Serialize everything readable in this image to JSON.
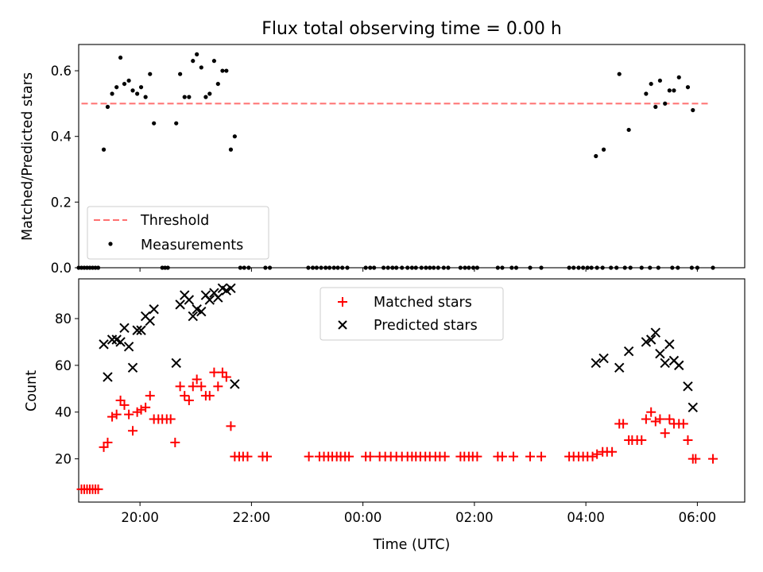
{
  "title": "Flux total observing time = 0.00 h",
  "chart_data": [
    {
      "type": "scatter",
      "ylabel": "Matched/Predicted stars",
      "xlabel": "",
      "x_range_hours": [
        -5.1,
        6.85
      ],
      "ylim": [
        0,
        0.68
      ],
      "yticks": [
        0.0,
        0.2,
        0.4,
        0.6
      ],
      "ytick_labels": [
        "0.0",
        "0.2",
        "0.4",
        "0.6"
      ],
      "threshold": {
        "name": "Threshold",
        "value": 0.5,
        "x_start": -5.05,
        "x_end": 6.2,
        "color": "#ff7070"
      },
      "legend": {
        "placement": "lower-left",
        "entries": [
          "Threshold",
          "Measurements"
        ]
      },
      "series": [
        {
          "name": "Measurements",
          "color": "#000000",
          "marker": "dot",
          "points": [
            [
              -5.1,
              0
            ],
            [
              -5.05,
              0
            ],
            [
              -5.0,
              0
            ],
            [
              -4.95,
              0
            ],
            [
              -4.9,
              0
            ],
            [
              -4.85,
              0
            ],
            [
              -4.8,
              0
            ],
            [
              -4.75,
              0
            ],
            [
              -4.65,
              0.36
            ],
            [
              -4.58,
              0.49
            ],
            [
              -4.5,
              0.53
            ],
            [
              -4.42,
              0.55
            ],
            [
              -4.35,
              0.64
            ],
            [
              -4.28,
              0.56
            ],
            [
              -4.2,
              0.57
            ],
            [
              -4.13,
              0.54
            ],
            [
              -4.05,
              0.53
            ],
            [
              -3.98,
              0.55
            ],
            [
              -3.9,
              0.52
            ],
            [
              -3.82,
              0.59
            ],
            [
              -3.75,
              0.44
            ],
            [
              -3.6,
              0
            ],
            [
              -3.55,
              0
            ],
            [
              -3.5,
              0
            ],
            [
              -3.35,
              0.44
            ],
            [
              -3.28,
              0.59
            ],
            [
              -3.2,
              0.52
            ],
            [
              -3.12,
              0.52
            ],
            [
              -3.05,
              0.63
            ],
            [
              -2.98,
              0.65
            ],
            [
              -2.9,
              0.61
            ],
            [
              -2.82,
              0.52
            ],
            [
              -2.75,
              0.53
            ],
            [
              -2.67,
              0.63
            ],
            [
              -2.6,
              0.56
            ],
            [
              -2.52,
              0.6
            ],
            [
              -2.45,
              0.6
            ],
            [
              -2.37,
              0.36
            ],
            [
              -2.3,
              0.4
            ],
            [
              -2.2,
              0
            ],
            [
              -2.13,
              0
            ],
            [
              -2.05,
              0
            ],
            [
              -1.75,
              0
            ],
            [
              -1.67,
              0
            ],
            [
              -0.98,
              0
            ],
            [
              -0.9,
              0
            ],
            [
              -0.83,
              0
            ],
            [
              -0.75,
              0
            ],
            [
              -0.67,
              0
            ],
            [
              -0.6,
              0
            ],
            [
              -0.52,
              0
            ],
            [
              -0.45,
              0
            ],
            [
              -0.37,
              0
            ],
            [
              -0.28,
              0
            ],
            [
              0.05,
              0
            ],
            [
              0.13,
              0
            ],
            [
              0.2,
              0
            ],
            [
              0.37,
              0
            ],
            [
              0.45,
              0
            ],
            [
              0.53,
              0
            ],
            [
              0.6,
              0
            ],
            [
              0.7,
              0
            ],
            [
              0.8,
              0
            ],
            [
              0.88,
              0
            ],
            [
              0.95,
              0
            ],
            [
              1.05,
              0
            ],
            [
              1.13,
              0
            ],
            [
              1.2,
              0
            ],
            [
              1.27,
              0
            ],
            [
              1.35,
              0
            ],
            [
              1.45,
              0
            ],
            [
              1.53,
              0
            ],
            [
              1.75,
              0
            ],
            [
              1.83,
              0
            ],
            [
              1.9,
              0
            ],
            [
              1.98,
              0
            ],
            [
              2.05,
              0
            ],
            [
              2.42,
              0
            ],
            [
              2.5,
              0
            ],
            [
              2.67,
              0
            ],
            [
              2.75,
              0
            ],
            [
              3.0,
              0
            ],
            [
              3.2,
              0
            ],
            [
              3.7,
              0
            ],
            [
              3.78,
              0
            ],
            [
              3.87,
              0
            ],
            [
              3.95,
              0
            ],
            [
              4.03,
              0
            ],
            [
              4.1,
              0
            ],
            [
              4.2,
              0
            ],
            [
              4.3,
              0
            ],
            [
              4.45,
              0
            ],
            [
              4.55,
              0
            ],
            [
              4.7,
              0
            ],
            [
              4.8,
              0
            ],
            [
              5.0,
              0
            ],
            [
              5.15,
              0
            ],
            [
              5.3,
              0
            ],
            [
              5.55,
              0
            ],
            [
              5.65,
              0
            ],
            [
              5.9,
              0
            ],
            [
              6.0,
              0
            ],
            [
              6.28,
              0
            ],
            [
              4.18,
              0.34
            ],
            [
              4.32,
              0.36
            ],
            [
              4.6,
              0.59
            ],
            [
              4.77,
              0.42
            ],
            [
              5.08,
              0.53
            ],
            [
              5.17,
              0.56
            ],
            [
              5.25,
              0.49
            ],
            [
              5.33,
              0.57
            ],
            [
              5.42,
              0.5
            ],
            [
              5.5,
              0.54
            ],
            [
              5.58,
              0.54
            ],
            [
              5.67,
              0.58
            ],
            [
              5.83,
              0.55
            ],
            [
              5.92,
              0.48
            ]
          ]
        }
      ]
    },
    {
      "type": "scatter",
      "ylabel": "Count",
      "xlabel": "Time (UTC)",
      "x_range_hours": [
        -5.1,
        6.85
      ],
      "ylim": [
        1.5,
        97
      ],
      "yticks": [
        20,
        40,
        60,
        80
      ],
      "ytick_labels": [
        "20",
        "40",
        "60",
        "80"
      ],
      "xticks_hours": [
        -4,
        -2,
        0,
        2,
        4,
        6
      ],
      "xtick_labels": [
        "20:00",
        "22:00",
        "00:00",
        "02:00",
        "04:00",
        "06:00"
      ],
      "legend": {
        "placement": "upper-center",
        "entries": [
          "Matched stars",
          "Predicted stars"
        ]
      },
      "series": [
        {
          "name": "Matched stars",
          "color": "#ff0000",
          "marker": "plus",
          "points": [
            [
              -5.05,
              7
            ],
            [
              -5.0,
              7
            ],
            [
              -4.95,
              7
            ],
            [
              -4.9,
              7
            ],
            [
              -4.85,
              7
            ],
            [
              -4.8,
              7
            ],
            [
              -4.75,
              7
            ],
            [
              -4.65,
              25
            ],
            [
              -4.58,
              27
            ],
            [
              -4.5,
              38
            ],
            [
              -4.42,
              39
            ],
            [
              -4.35,
              45
            ],
            [
              -4.28,
              43
            ],
            [
              -4.2,
              39
            ],
            [
              -4.13,
              32
            ],
            [
              -4.05,
              40
            ],
            [
              -3.98,
              41
            ],
            [
              -3.9,
              42
            ],
            [
              -3.82,
              47
            ],
            [
              -3.75,
              37
            ],
            [
              -3.67,
              37
            ],
            [
              -3.6,
              37
            ],
            [
              -3.52,
              37
            ],
            [
              -3.45,
              37
            ],
            [
              -3.37,
              27
            ],
            [
              -3.28,
              51
            ],
            [
              -3.2,
              47
            ],
            [
              -3.12,
              45
            ],
            [
              -3.05,
              51
            ],
            [
              -2.98,
              54
            ],
            [
              -2.9,
              51
            ],
            [
              -2.82,
              47
            ],
            [
              -2.75,
              47
            ],
            [
              -2.67,
              57
            ],
            [
              -2.6,
              51
            ],
            [
              -2.52,
              57
            ],
            [
              -2.45,
              55
            ],
            [
              -2.37,
              34
            ],
            [
              -2.3,
              21
            ],
            [
              -2.22,
              21
            ],
            [
              -2.15,
              21
            ],
            [
              -2.07,
              21
            ],
            [
              -1.8,
              21
            ],
            [
              -1.72,
              21
            ],
            [
              -0.97,
              21
            ],
            [
              -0.78,
              21
            ],
            [
              -0.7,
              21
            ],
            [
              -0.62,
              21
            ],
            [
              -0.55,
              21
            ],
            [
              -0.47,
              21
            ],
            [
              -0.4,
              21
            ],
            [
              -0.32,
              21
            ],
            [
              -0.25,
              21
            ],
            [
              0.05,
              21
            ],
            [
              0.13,
              21
            ],
            [
              0.3,
              21
            ],
            [
              0.4,
              21
            ],
            [
              0.5,
              21
            ],
            [
              0.6,
              21
            ],
            [
              0.7,
              21
            ],
            [
              0.8,
              21
            ],
            [
              0.88,
              21
            ],
            [
              0.95,
              21
            ],
            [
              1.03,
              21
            ],
            [
              1.12,
              21
            ],
            [
              1.2,
              21
            ],
            [
              1.3,
              21
            ],
            [
              1.38,
              21
            ],
            [
              1.47,
              21
            ],
            [
              1.75,
              21
            ],
            [
              1.82,
              21
            ],
            [
              1.9,
              21
            ],
            [
              1.97,
              21
            ],
            [
              2.05,
              21
            ],
            [
              2.42,
              21
            ],
            [
              2.5,
              21
            ],
            [
              2.7,
              21
            ],
            [
              3.0,
              21
            ],
            [
              3.2,
              21
            ],
            [
              3.7,
              21
            ],
            [
              3.78,
              21
            ],
            [
              3.87,
              21
            ],
            [
              3.95,
              21
            ],
            [
              4.03,
              21
            ],
            [
              4.12,
              21
            ],
            [
              4.2,
              22
            ],
            [
              4.3,
              23
            ],
            [
              4.38,
              23
            ],
            [
              4.47,
              23
            ],
            [
              4.6,
              35
            ],
            [
              4.67,
              35
            ],
            [
              4.77,
              28
            ],
            [
              4.83,
              28
            ],
            [
              4.92,
              28
            ],
            [
              5.0,
              28
            ],
            [
              5.08,
              37
            ],
            [
              5.17,
              40
            ],
            [
              5.25,
              36
            ],
            [
              5.33,
              37
            ],
            [
              5.42,
              31
            ],
            [
              5.5,
              37
            ],
            [
              5.58,
              35
            ],
            [
              5.67,
              35
            ],
            [
              5.75,
              35
            ],
            [
              5.83,
              28
            ],
            [
              5.92,
              20
            ],
            [
              5.97,
              20
            ],
            [
              6.28,
              20
            ]
          ]
        },
        {
          "name": "Predicted stars",
          "color": "#000000",
          "marker": "x",
          "points": [
            [
              -4.65,
              69
            ],
            [
              -4.58,
              55
            ],
            [
              -4.5,
              71
            ],
            [
              -4.42,
              71
            ],
            [
              -4.35,
              70
            ],
            [
              -4.28,
              76
            ],
            [
              -4.2,
              68
            ],
            [
              -4.13,
              59
            ],
            [
              -4.05,
              75
            ],
            [
              -3.98,
              75
            ],
            [
              -3.9,
              81
            ],
            [
              -3.82,
              79
            ],
            [
              -3.75,
              84
            ],
            [
              -3.35,
              61
            ],
            [
              -3.28,
              86
            ],
            [
              -3.2,
              90
            ],
            [
              -3.12,
              88
            ],
            [
              -3.05,
              81
            ],
            [
              -2.98,
              84
            ],
            [
              -2.9,
              83
            ],
            [
              -2.82,
              90
            ],
            [
              -2.75,
              88
            ],
            [
              -2.67,
              91
            ],
            [
              -2.6,
              89
            ],
            [
              -2.52,
              93
            ],
            [
              -2.45,
              92
            ],
            [
              -2.37,
              93
            ],
            [
              -2.3,
              52
            ],
            [
              4.18,
              61
            ],
            [
              4.32,
              63
            ],
            [
              4.6,
              59
            ],
            [
              4.77,
              66
            ],
            [
              5.08,
              70
            ],
            [
              5.17,
              71
            ],
            [
              5.25,
              74
            ],
            [
              5.33,
              65
            ],
            [
              5.42,
              61
            ],
            [
              5.5,
              69
            ],
            [
              5.58,
              62
            ],
            [
              5.67,
              60
            ],
            [
              5.83,
              51
            ],
            [
              5.92,
              42
            ]
          ]
        }
      ]
    }
  ]
}
